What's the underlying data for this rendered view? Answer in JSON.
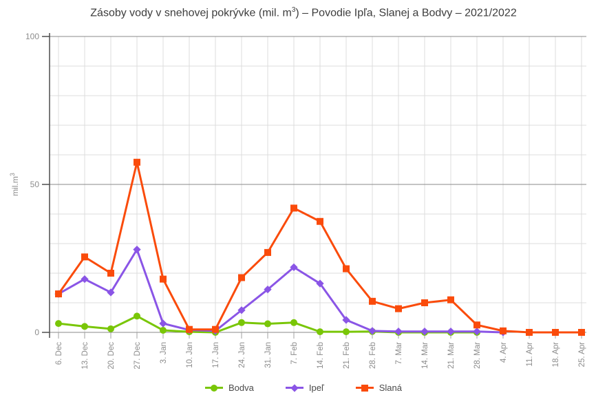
{
  "title": {
    "prefix": "Zásoby vody v snehovej pokrývke (mil. m",
    "sup": "3",
    "suffix": ") – Povodie Ipľa, Slanej a Bodvy – 2021/2022"
  },
  "colors": {
    "grid_minor": "#dcdcdc",
    "grid_major": "#8a8a8a",
    "axis": "#4d4d4d",
    "tick": "#a0a0a0",
    "axis_text": "#8c8c8c",
    "title_text": "#3d3d3d",
    "legend_text": "#4a4a4a"
  },
  "chart_data": {
    "type": "line",
    "title": "Zásoby vody v snehovej pokrývke (mil. m³) – Povodie Ipľa, Slanej a Bodvy – 2021/2022",
    "xlabel": "",
    "ylabel": "mil.m³",
    "ylabel_parts": {
      "base": "mil.m",
      "sup": "3"
    },
    "ylim": [
      0,
      100
    ],
    "y_major_ticks": [
      0,
      50,
      100
    ],
    "y_minor_step": 10,
    "grid": true,
    "legend_position": "bottom",
    "categories": [
      "6. Dec",
      "13. Dec",
      "20. Dec",
      "27. Dec",
      "3. Jan",
      "10. Jan",
      "17. Jan",
      "24. Jan",
      "31. Jan",
      "7. Feb",
      "14. Feb",
      "21. Feb",
      "28. Feb",
      "7. Mar",
      "14. Mar",
      "21. Mar",
      "28. Mar",
      "4. Apr",
      "11. Apr",
      "18. Apr",
      "25. Apr"
    ],
    "series": [
      {
        "name": "Bodva",
        "key": "bodva",
        "color": "#79c607",
        "marker": "circle",
        "values": [
          3,
          2,
          1.2,
          5.5,
          0.7,
          0.2,
          0,
          3.3,
          2.9,
          3.3,
          0.2,
          0.2,
          0.3,
          0,
          0,
          0,
          0
        ]
      },
      {
        "name": "Ipeľ",
        "key": "ipel",
        "color": "#8a55e6",
        "marker": "diamond",
        "values": [
          13,
          18,
          13.5,
          28,
          3,
          0.8,
          0.5,
          7.5,
          14.5,
          22,
          16.5,
          4.2,
          0.5,
          0.3,
          0.3,
          0.3,
          0.3,
          0
        ]
      },
      {
        "name": "Slaná",
        "key": "slana",
        "color": "#fa4b0b",
        "marker": "square",
        "values": [
          13,
          25.5,
          20,
          57.5,
          18,
          1,
          1,
          18.5,
          27,
          42,
          37.5,
          21.5,
          10.5,
          8,
          10,
          11,
          2.5,
          0.5,
          0,
          0,
          0
        ]
      }
    ]
  }
}
